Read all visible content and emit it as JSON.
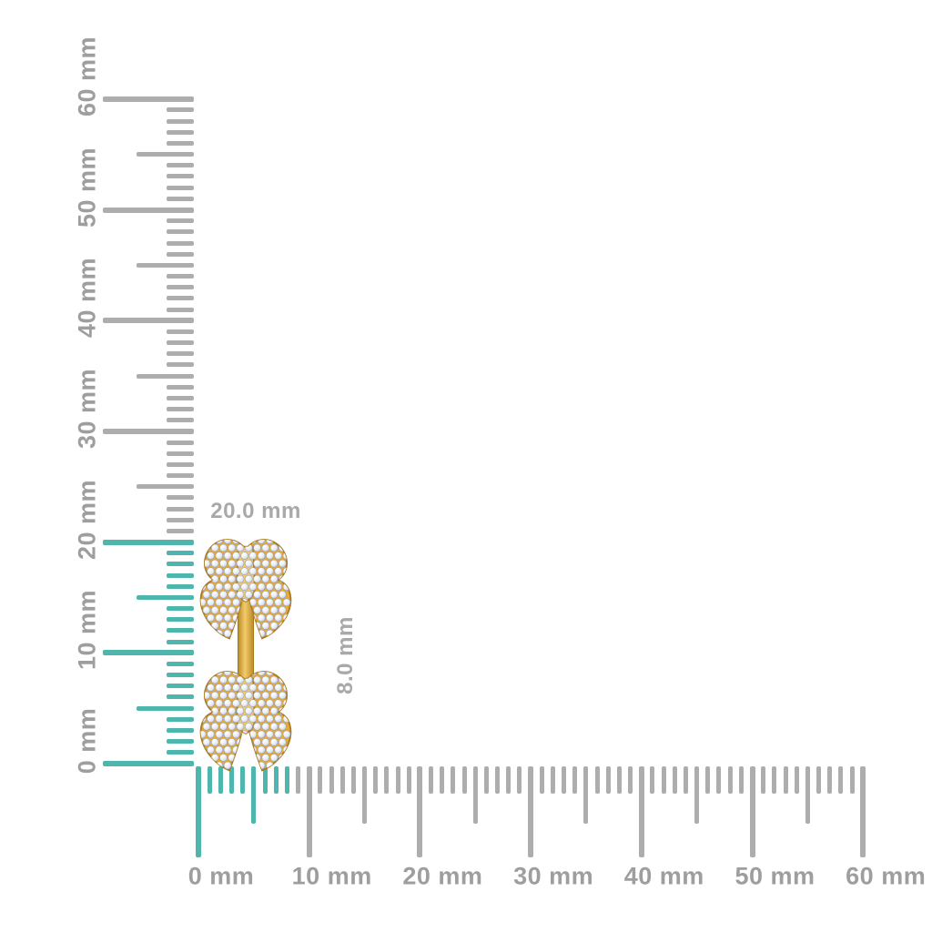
{
  "scene": {
    "background": "#ffffff",
    "description": "gold earring with two diamond-pave leaf clusters measured against millimeter rulers"
  },
  "rulers": {
    "unit": "mm",
    "vertical": {
      "min_mm": 0,
      "max_mm": 60,
      "major_step_mm": 10,
      "mid_step_mm": 5,
      "minor_step_mm": 1,
      "labels": [
        "0 mm",
        "10 mm",
        "20 mm",
        "30 mm",
        "40 mm",
        "50 mm",
        "60 mm"
      ],
      "highlighted_range_mm": [
        0,
        20
      ]
    },
    "horizontal": {
      "min_mm": 0,
      "max_mm": 60,
      "major_step_mm": 10,
      "mid_step_mm": 5,
      "minor_step_mm": 1,
      "labels": [
        "0 mm",
        "10 mm",
        "20 mm",
        "30 mm",
        "40 mm",
        "50 mm",
        "60 mm"
      ],
      "highlighted_range_mm": [
        0,
        8
      ]
    }
  },
  "measurements": {
    "height_label": "20.0 mm",
    "width_label": "8.0 mm"
  },
  "colors": {
    "tick_gray": "#adadad",
    "tick_highlight": "#4fb6ae",
    "ruler_label": "#9e9e9e",
    "dimension_label": "#a9a9a9",
    "gold": "#e8aa33",
    "gold_dark": "#ab7a1e",
    "gold_light": "#f2cb6c",
    "diamond_light": "#ffffff",
    "diamond_mid": "#d7dde9",
    "diamond_edge": "#99a1b5"
  }
}
